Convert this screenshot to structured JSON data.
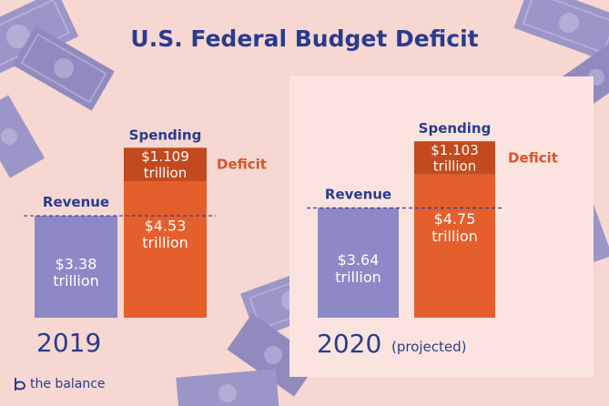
{
  "title": "U.S. Federal Budget Deficit",
  "brand": "the balance",
  "colors": {
    "revenue": "#8c89c6",
    "spending": "#e55f2c",
    "deficit": "#c24a1e",
    "text_dark": "#2a3b8f",
    "deficit_label": "#d9552a",
    "background": "#f6d7d2"
  },
  "chart_data": [
    {
      "type": "bar",
      "year_label": "2019",
      "note": "",
      "categories": [
        "Revenue",
        "Spending"
      ],
      "bars": [
        {
          "label": "Revenue",
          "segments": [
            {
              "value": 3.38,
              "label": "$3.38 trillion",
              "color_key": "revenue"
            }
          ]
        },
        {
          "label": "Spending",
          "segments": [
            {
              "value": 4.53,
              "label": "$4.53 trillion",
              "color_key": "spending"
            },
            {
              "value": 1.109,
              "label": "$1.109 trillion",
              "color_key": "deficit"
            }
          ]
        }
      ],
      "deficit_label": "Deficit",
      "unit": "trillion"
    },
    {
      "type": "bar",
      "year_label": "2020",
      "note": "(projected)",
      "categories": [
        "Revenue",
        "Spending"
      ],
      "bars": [
        {
          "label": "Revenue",
          "segments": [
            {
              "value": 3.64,
              "label": "$3.64 trillion",
              "color_key": "revenue"
            }
          ]
        },
        {
          "label": "Spending",
          "segments": [
            {
              "value": 4.75,
              "label": "$4.75 trillion",
              "color_key": "spending"
            },
            {
              "value": 1.103,
              "label": "$1.103 trillion",
              "color_key": "deficit"
            }
          ]
        }
      ],
      "deficit_label": "Deficit",
      "unit": "trillion"
    }
  ]
}
